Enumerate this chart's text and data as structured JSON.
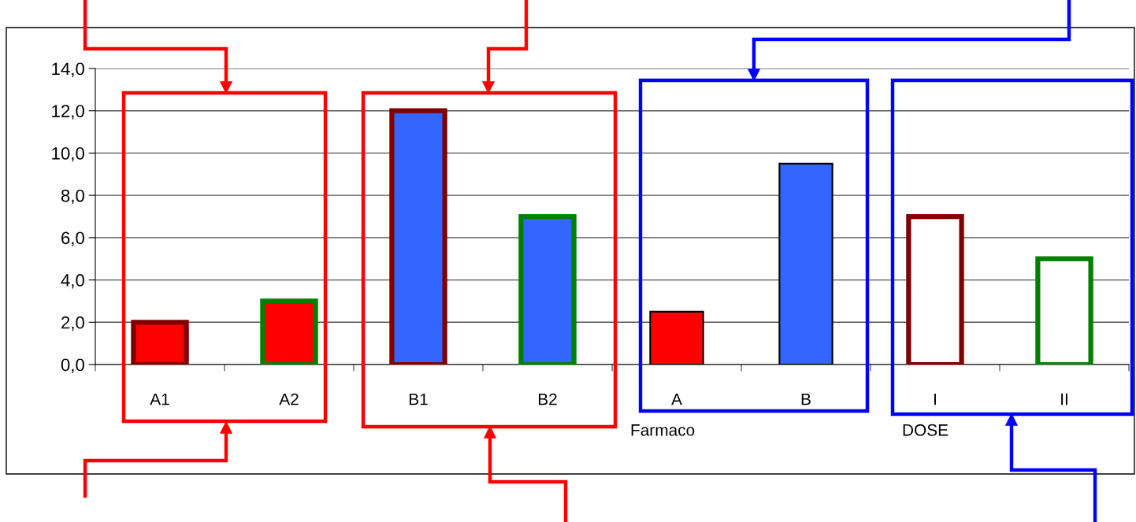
{
  "chart_data": {
    "type": "bar",
    "categories": [
      "A1",
      "A2",
      "B1",
      "B2",
      "A",
      "B",
      "I",
      "II"
    ],
    "values": [
      2,
      3,
      12,
      7,
      2.5,
      9.5,
      7,
      5
    ],
    "colors": [
      "#ff0000",
      "#ff0000",
      "#3366ff",
      "#3366ff",
      "#ff0000",
      "#3366ff",
      "#ffffff",
      "#ffffff"
    ],
    "ylim": [
      0,
      14
    ],
    "yticks": [
      {
        "value": 0,
        "label": "0,0"
      },
      {
        "value": 2,
        "label": "2,0"
      },
      {
        "value": 4,
        "label": "4,0"
      },
      {
        "value": 6,
        "label": "6,0"
      },
      {
        "value": 8,
        "label": "8,0"
      },
      {
        "value": 10,
        "label": "10,0"
      },
      {
        "value": 12,
        "label": "12,0"
      },
      {
        "value": 14,
        "label": "14,0"
      }
    ],
    "grid": "y",
    "annotations": [
      "Farmaco",
      "DOSE"
    ]
  }
}
